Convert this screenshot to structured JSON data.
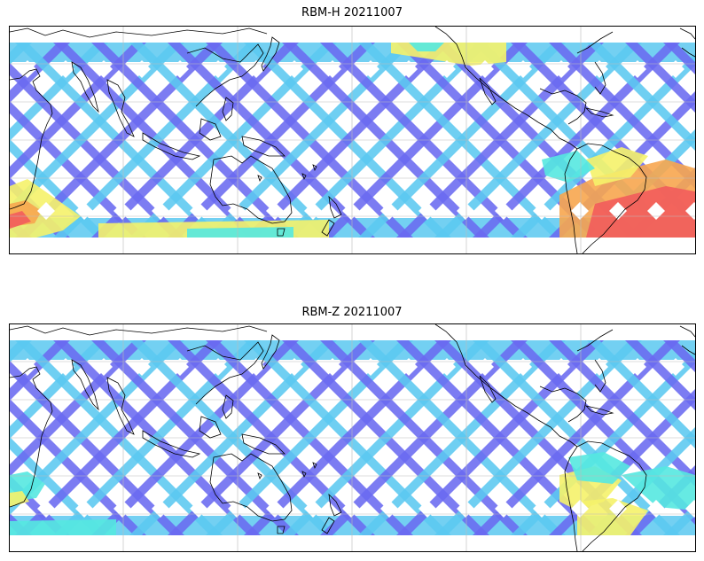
{
  "panels": [
    {
      "title": "RBM-H 20211007",
      "colormap": "jet",
      "hot_regions": "high"
    },
    {
      "title": "RBM-Z 20211007",
      "colormap": "jet",
      "hot_regions": "low"
    }
  ],
  "colors": {
    "swath_blue": "#6a6af0",
    "swath_light": "#5bc8f0",
    "cyan": "#55e8e0",
    "yellow": "#f5f26a",
    "orange": "#f7a64f",
    "red": "#f25c5c",
    "coastline": "#000000",
    "gridline": "#bbbbbb"
  }
}
